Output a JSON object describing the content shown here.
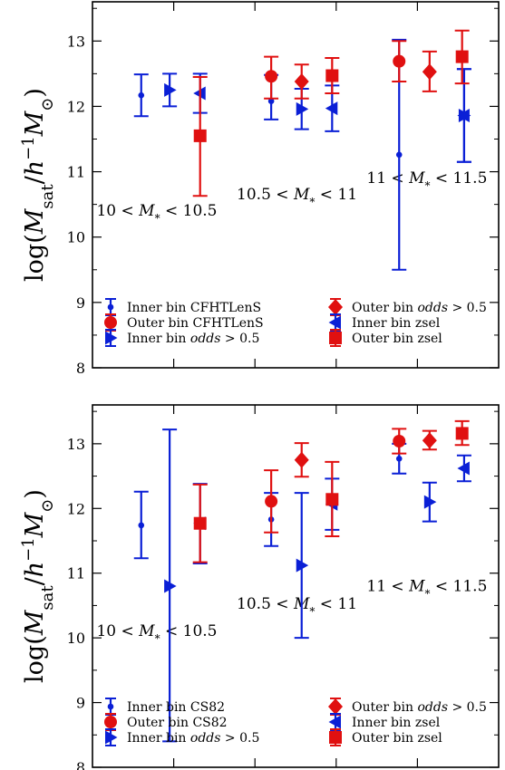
{
  "colors": {
    "inner": "#0a1fd6",
    "outer": "#e01010",
    "axis": "#000000"
  },
  "chart_data": [
    {
      "type": "scatter",
      "panel": "top",
      "ylabel": "log(M_sat / h^-1 M_⊙)",
      "ylim": [
        8,
        13.6
      ],
      "yticks": [
        8,
        9,
        10,
        11,
        12,
        13
      ],
      "xlim": [
        0,
        1
      ],
      "grid": false,
      "legend_placement": "lower-left",
      "annotations": [
        {
          "text": "10 < M* < 10.5",
          "x": 0.01,
          "y": 10.33
        },
        {
          "text": "10.5 < M* < 11",
          "x": 0.355,
          "y": 10.58
        },
        {
          "text": "11 < M* < 11.5",
          "x": 0.675,
          "y": 10.83
        }
      ],
      "series": [
        {
          "name": "Inner bin CFHTLenS",
          "marker": "circle-small",
          "color": "#0a1fd6",
          "points": [
            {
              "x": 0.12,
              "y": 12.17,
              "lo": 11.85,
              "hi": 12.49
            },
            {
              "x": 0.44,
              "y": 12.08,
              "lo": 11.8,
              "hi": 12.48
            },
            {
              "x": 0.755,
              "y": 11.26,
              "lo": 9.5,
              "hi": 13.02
            }
          ]
        },
        {
          "name": "Outer bin CFHTLenS",
          "marker": "circle",
          "color": "#e01010",
          "points": [
            {
              "x": 0.44,
              "y": 12.46,
              "lo": 12.12,
              "hi": 12.76
            },
            {
              "x": 0.755,
              "y": 12.69,
              "lo": 12.38,
              "hi": 13.0
            }
          ]
        },
        {
          "name": "Inner bin odds > 0.5",
          "marker": "triangle-right",
          "color": "#0a1fd6",
          "points": [
            {
              "x": 0.19,
              "y": 12.25,
              "lo": 12.0,
              "hi": 12.5
            },
            {
              "x": 0.515,
              "y": 11.96,
              "lo": 11.65,
              "hi": 12.27
            },
            {
              "x": 0.915,
              "y": 11.86,
              "lo": 11.15,
              "hi": 12.57
            }
          ]
        },
        {
          "name": "Outer bin odds > 0.5",
          "marker": "diamond",
          "color": "#e01010",
          "points": [
            {
              "x": 0.515,
              "y": 12.38,
              "lo": 12.12,
              "hi": 12.64
            },
            {
              "x": 0.83,
              "y": 12.53,
              "lo": 12.23,
              "hi": 12.84
            }
          ]
        },
        {
          "name": "Inner bin zsel",
          "marker": "triangle-left",
          "color": "#0a1fd6",
          "points": [
            {
              "x": 0.265,
              "y": 12.2,
              "lo": 11.9,
              "hi": 12.5
            },
            {
              "x": 0.59,
              "y": 11.97,
              "lo": 11.62,
              "hi": 12.32
            },
            {
              "x": 0.915,
              "y": 11.86,
              "lo": 11.15,
              "hi": 12.57
            }
          ]
        },
        {
          "name": "Outer bin zsel",
          "marker": "square",
          "color": "#e01010",
          "points": [
            {
              "x": 0.265,
              "y": 11.55,
              "lo": 10.63,
              "hi": 12.45
            },
            {
              "x": 0.59,
              "y": 12.47,
              "lo": 12.2,
              "hi": 12.74
            },
            {
              "x": 0.91,
              "y": 12.76,
              "lo": 12.35,
              "hi": 13.16
            }
          ]
        }
      ]
    },
    {
      "type": "scatter",
      "panel": "bottom",
      "ylabel": "log(M_sat / h^-1 M_⊙)",
      "ylim": [
        8,
        13.6
      ],
      "yticks": [
        8,
        9,
        10,
        11,
        12,
        13
      ],
      "xlim": [
        0,
        1
      ],
      "grid": false,
      "legend_placement": "lower-left",
      "annotations": [
        {
          "text": "10 < M* < 10.5",
          "x": 0.01,
          "y": 10.03
        },
        {
          "text": "10.5 < M* < 11",
          "x": 0.355,
          "y": 10.45
        },
        {
          "text": "11 < M* < 11.5",
          "x": 0.675,
          "y": 10.72
        }
      ],
      "series": [
        {
          "name": "Inner bin CS82",
          "marker": "circle-small",
          "color": "#0a1fd6",
          "points": [
            {
              "x": 0.12,
              "y": 11.74,
              "lo": 11.23,
              "hi": 12.26
            },
            {
              "x": 0.44,
              "y": 11.83,
              "lo": 11.42,
              "hi": 12.24
            },
            {
              "x": 0.755,
              "y": 12.77,
              "lo": 12.54,
              "hi": 13.0
            }
          ]
        },
        {
          "name": "Outer bin CS82",
          "marker": "circle",
          "color": "#e01010",
          "points": [
            {
              "x": 0.44,
              "y": 12.11,
              "lo": 11.63,
              "hi": 12.59
            },
            {
              "x": 0.755,
              "y": 13.04,
              "lo": 12.85,
              "hi": 13.23
            }
          ]
        },
        {
          "name": "Inner bin odds > 0.5",
          "marker": "triangle-right",
          "color": "#0a1fd6",
          "points": [
            {
              "x": 0.19,
              "y": 10.8,
              "lo": 8.4,
              "hi": 13.22
            },
            {
              "x": 0.515,
              "y": 11.12,
              "lo": 10.0,
              "hi": 12.24
            },
            {
              "x": 0.83,
              "y": 12.1,
              "lo": 11.8,
              "hi": 12.4
            }
          ]
        },
        {
          "name": "Outer bin odds > 0.5",
          "marker": "diamond",
          "color": "#e01010",
          "points": [
            {
              "x": 0.515,
              "y": 12.75,
              "lo": 12.49,
              "hi": 13.01
            },
            {
              "x": 0.83,
              "y": 13.05,
              "lo": 12.91,
              "hi": 13.2
            }
          ]
        },
        {
          "name": "Inner bin zsel",
          "marker": "triangle-left",
          "color": "#0a1fd6",
          "points": [
            {
              "x": 0.265,
              "y": 11.77,
              "lo": 11.15,
              "hi": 12.38
            },
            {
              "x": 0.59,
              "y": 12.07,
              "lo": 11.67,
              "hi": 12.46
            },
            {
              "x": 0.915,
              "y": 12.62,
              "lo": 12.42,
              "hi": 12.82
            }
          ]
        },
        {
          "name": "Outer bin zsel",
          "marker": "square",
          "color": "#e01010",
          "points": [
            {
              "x": 0.265,
              "y": 11.77,
              "lo": 11.17,
              "hi": 12.37
            },
            {
              "x": 0.59,
              "y": 12.14,
              "lo": 11.57,
              "hi": 12.72
            },
            {
              "x": 0.91,
              "y": 13.16,
              "lo": 12.98,
              "hi": 13.35
            }
          ]
        }
      ]
    }
  ]
}
